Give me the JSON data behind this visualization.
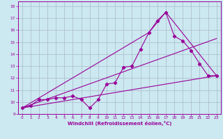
{
  "xlabel": "Windchill (Refroidissement éolien,°C)",
  "bg_color": "#cce8f0",
  "line_color": "#990099",
  "grid_color": "#aabbcc",
  "xlim": [
    -0.5,
    23.5
  ],
  "ylim": [
    9,
    18.4
  ],
  "xticks": [
    0,
    1,
    2,
    3,
    4,
    5,
    6,
    7,
    8,
    9,
    10,
    11,
    12,
    13,
    14,
    15,
    16,
    17,
    18,
    19,
    20,
    21,
    22,
    23
  ],
  "yticks": [
    9,
    10,
    11,
    12,
    13,
    14,
    15,
    16,
    17,
    18
  ],
  "series0_x": [
    0,
    1,
    2,
    3,
    4,
    5,
    6,
    7,
    8,
    9,
    10,
    11,
    12,
    13,
    14,
    15,
    16,
    17,
    18,
    19,
    20,
    21,
    22,
    23
  ],
  "series0_y": [
    9.5,
    9.7,
    10.2,
    10.2,
    10.35,
    10.35,
    10.5,
    10.2,
    9.5,
    10.2,
    11.5,
    11.6,
    12.9,
    13.0,
    14.4,
    15.8,
    16.8,
    17.5,
    15.5,
    15.1,
    14.3,
    13.2,
    12.2,
    12.2
  ],
  "line1_x": [
    0,
    23
  ],
  "line1_y": [
    9.5,
    12.2
  ],
  "line2_x": [
    0,
    15,
    17,
    23
  ],
  "line2_y": [
    9.5,
    15.8,
    17.5,
    12.2
  ],
  "line3_x": [
    0,
    23
  ],
  "line3_y": [
    9.5,
    15.3
  ]
}
